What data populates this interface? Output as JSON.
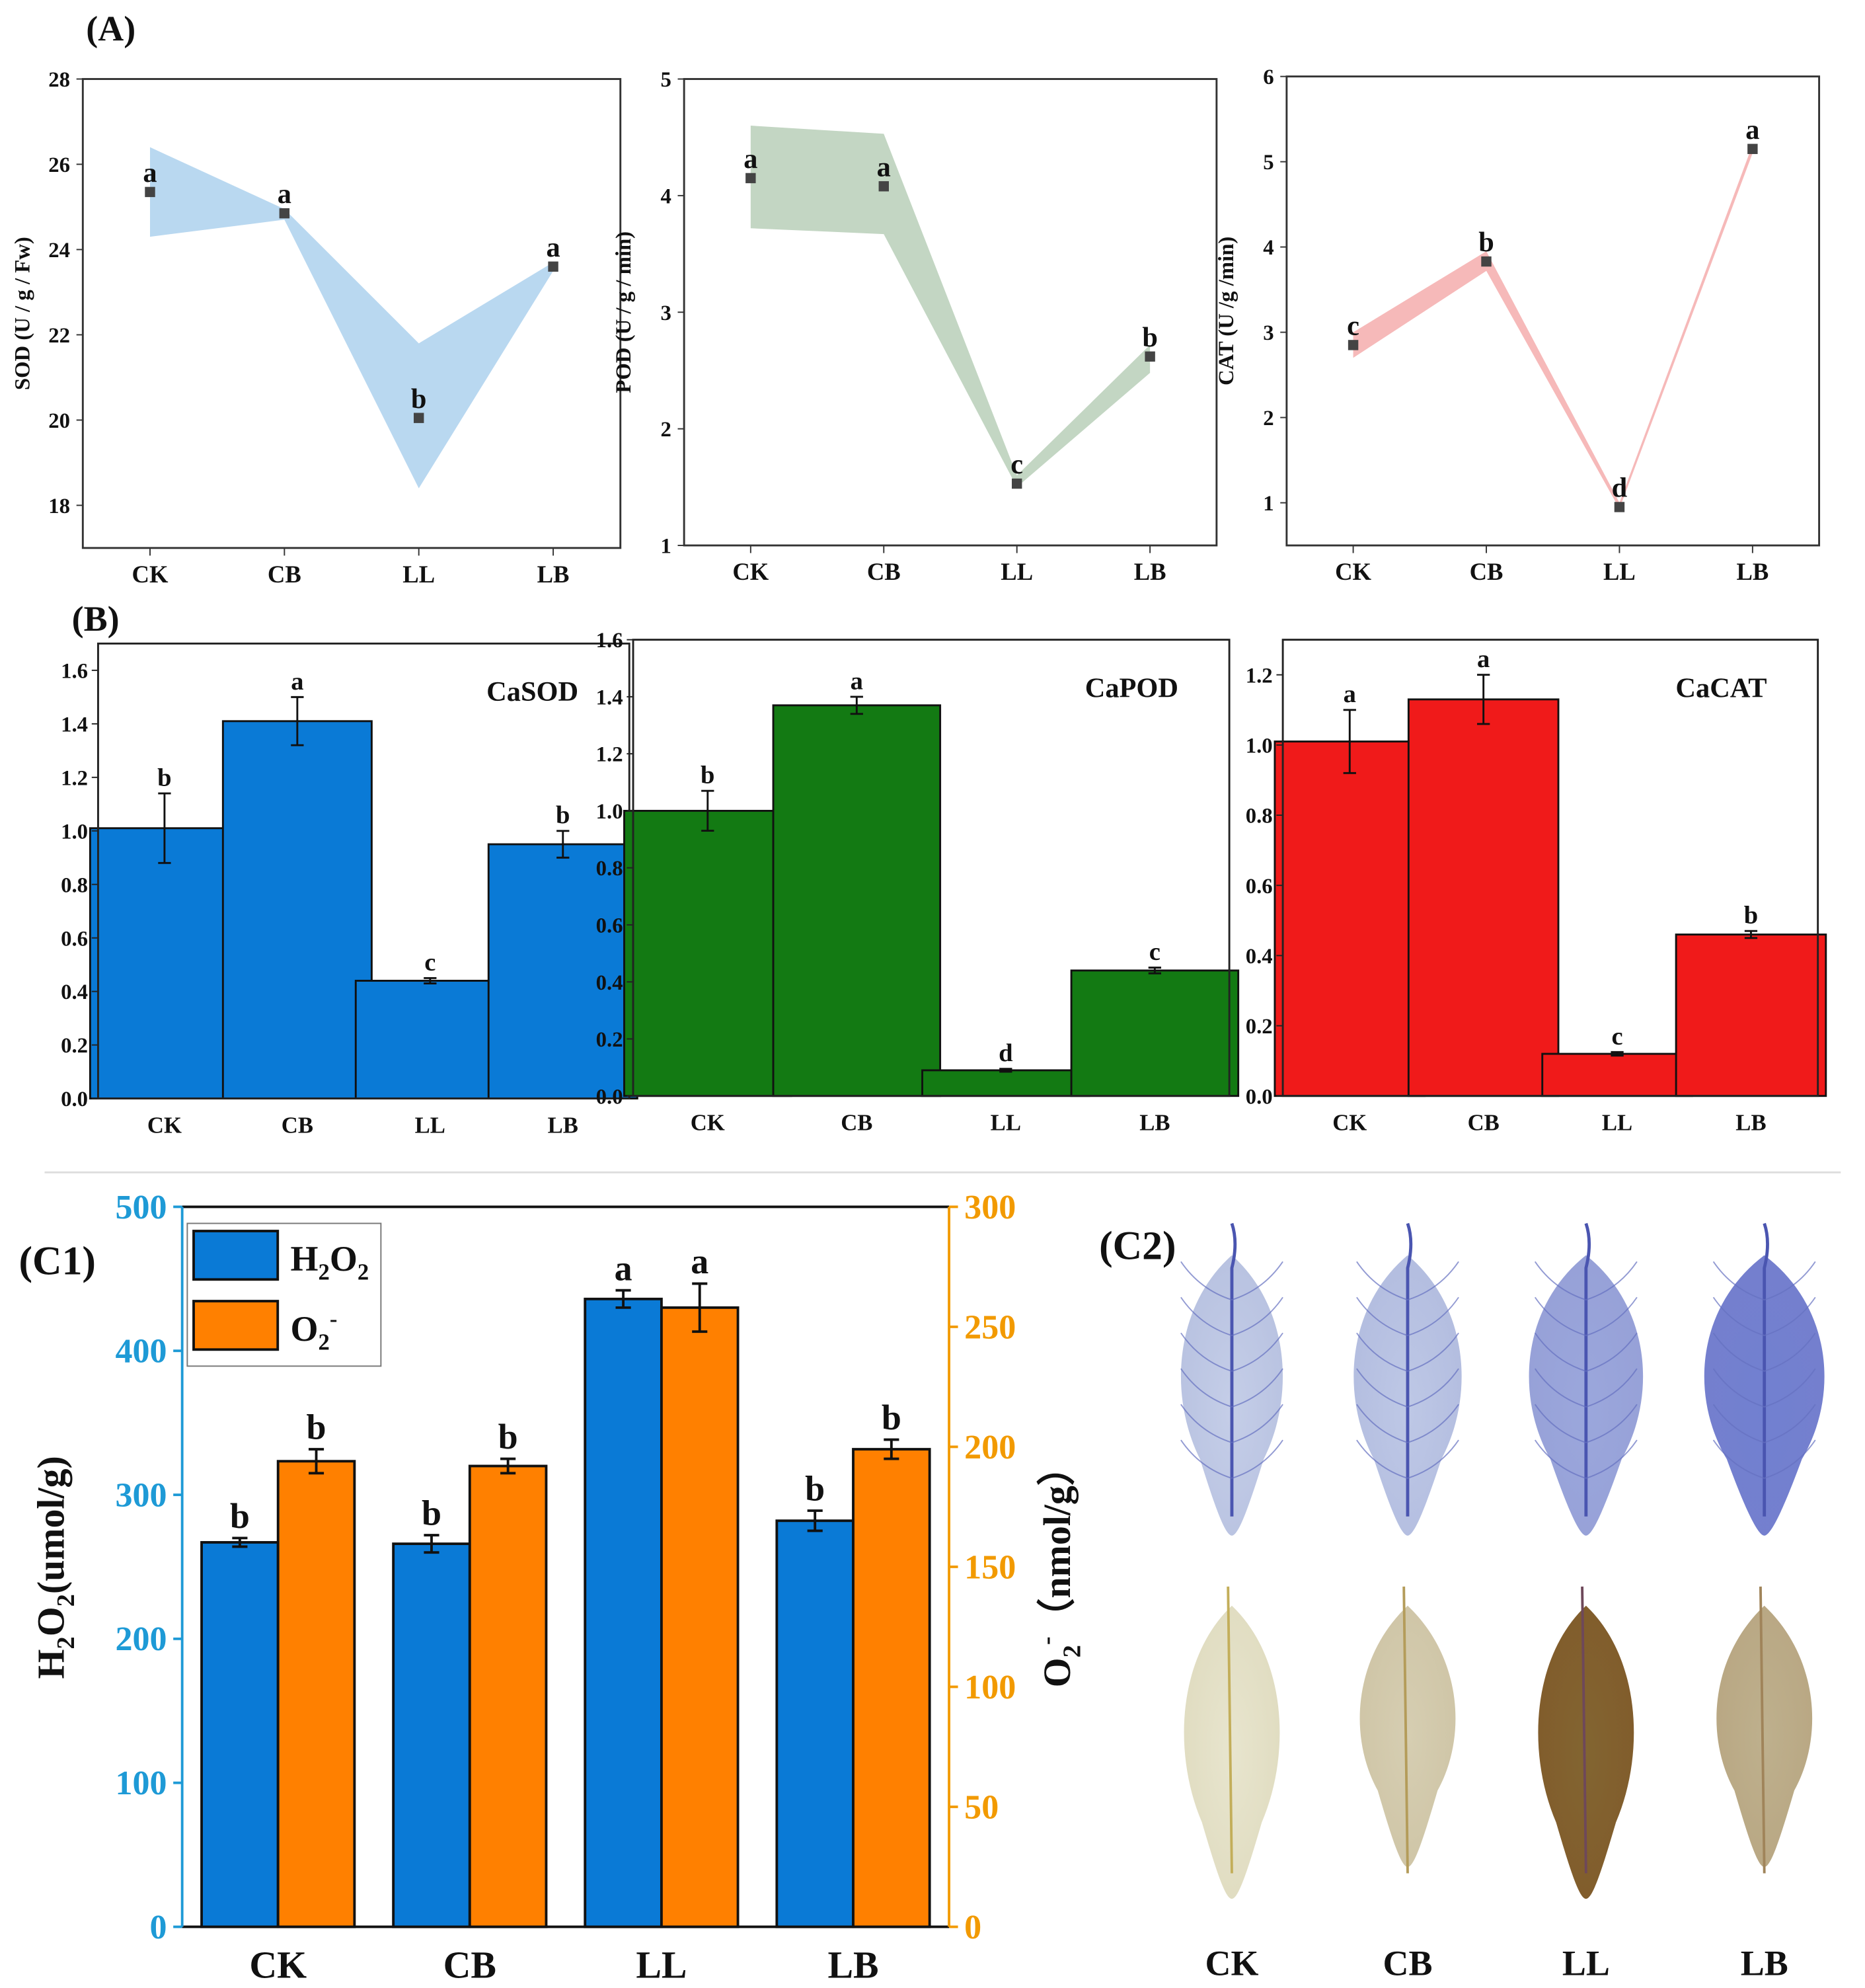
{
  "chart_data": [
    {
      "id": "A1",
      "panel_label": "(A)",
      "type": "line-band",
      "ylabel": "SOD (U / g / Fw)",
      "categories": [
        "CK",
        "CB",
        "LL",
        "LB"
      ],
      "values": [
        25.35,
        24.85,
        20.05,
        23.6
      ],
      "band_low": [
        24.3,
        24.7,
        18.4,
        23.5
      ],
      "band_high": [
        26.4,
        24.95,
        21.8,
        23.7
      ],
      "letters": [
        "a",
        "a",
        "b",
        "a"
      ],
      "ylim": [
        17,
        28
      ],
      "yticks": [
        18,
        20,
        22,
        24,
        26,
        28
      ],
      "color": "#b9d8f0"
    },
    {
      "id": "A2",
      "type": "line-band",
      "ylabel": "POD (U / g / min)",
      "categories": [
        "CK",
        "CB",
        "LL",
        "LB"
      ],
      "values": [
        4.15,
        4.08,
        1.53,
        2.62
      ],
      "band_low": [
        3.72,
        3.67,
        1.5,
        2.48
      ],
      "band_high": [
        4.6,
        4.53,
        1.6,
        2.72
      ],
      "letters": [
        "a",
        "a",
        "c",
        "b"
      ],
      "ylim": [
        1,
        5
      ],
      "yticks": [
        1,
        2,
        3,
        4,
        5
      ],
      "color": "#c3d6c3"
    },
    {
      "id": "A3",
      "type": "line-band",
      "ylabel": "CAT (U /g /min)",
      "categories": [
        "CK",
        "CB",
        "LL",
        "LB"
      ],
      "values": [
        2.85,
        3.83,
        0.95,
        5.15
      ],
      "band_low": [
        2.7,
        3.72,
        0.93,
        5.1
      ],
      "band_high": [
        3.0,
        3.95,
        1.0,
        5.2
      ],
      "letters": [
        "c",
        "b",
        "d",
        "a"
      ],
      "ylim": [
        0.5,
        6
      ],
      "yticks": [
        1,
        2,
        3,
        4,
        5,
        6
      ],
      "color": "#f6b9b9"
    },
    {
      "id": "B1",
      "panel_label": "(B)",
      "type": "bar",
      "title": "CaSOD",
      "categories": [
        "CK",
        "CB",
        "LL",
        "LB"
      ],
      "values": [
        1.01,
        1.41,
        0.44,
        0.95
      ],
      "errors": [
        0.13,
        0.09,
        0.01,
        0.05
      ],
      "letters": [
        "b",
        "a",
        "c",
        "b"
      ],
      "ylim": [
        0,
        1.7
      ],
      "yticks": [
        "0.0",
        "0.2",
        "0.4",
        "0.6",
        "0.8",
        "1.0",
        "1.2",
        "1.4",
        "1.6"
      ],
      "color": "#0a7ad6"
    },
    {
      "id": "B2",
      "type": "bar",
      "title": "CaPOD",
      "categories": [
        "CK",
        "CB",
        "LL",
        "LB"
      ],
      "values": [
        1.0,
        1.37,
        0.09,
        0.44
      ],
      "errors": [
        0.07,
        0.03,
        0.005,
        0.01
      ],
      "letters": [
        "b",
        "a",
        "d",
        "c"
      ],
      "ylim": [
        0,
        1.6
      ],
      "yticks": [
        "0.0",
        "0.2",
        "0.4",
        "0.6",
        "0.8",
        "1.0",
        "1.2",
        "1.4",
        "1.6"
      ],
      "color": "#137a13"
    },
    {
      "id": "B3",
      "type": "bar",
      "title": "CaCAT",
      "categories": [
        "CK",
        "CB",
        "LL",
        "LB"
      ],
      "values": [
        1.01,
        1.13,
        0.12,
        0.46
      ],
      "errors": [
        0.09,
        0.07,
        0.005,
        0.01
      ],
      "letters": [
        "a",
        "a",
        "c",
        "b"
      ],
      "ylim": [
        0,
        1.3
      ],
      "yticks": [
        "0.0",
        "0.2",
        "0.4",
        "0.6",
        "0.8",
        "1.0",
        "1.2"
      ],
      "color": "#f01a1a"
    },
    {
      "id": "C1",
      "panel_label": "(C1)",
      "type": "bar-dual-axis",
      "categories": [
        "CK",
        "CB",
        "LL",
        "LB"
      ],
      "series": [
        {
          "name": "H2O2",
          "axis": "left",
          "values": [
            267,
            266,
            436,
            282
          ],
          "errors": [
            3,
            6,
            6,
            7
          ],
          "letters": [
            "b",
            "b",
            "a",
            "b"
          ],
          "color": "#0a7ad6"
        },
        {
          "name": "O2-",
          "axis": "right",
          "values": [
            194,
            192,
            258,
            199
          ],
          "errors": [
            5,
            3,
            10,
            4
          ],
          "letters": [
            "b",
            "b",
            "a",
            "b"
          ],
          "color": "#ff8000"
        }
      ],
      "ylabel_left": "H2O2(umol/g)",
      "ylabel_right": "O2- (nmol/g)",
      "ylim_left": [
        0,
        500
      ],
      "ylim_right": [
        0,
        300
      ],
      "yticks_left": [
        0,
        100,
        200,
        300,
        400,
        500
      ],
      "yticks_right": [
        0,
        50,
        100,
        150,
        200,
        250,
        300
      ],
      "left_axis_color": "#1e9ad6",
      "right_axis_color": "#f29a00",
      "legend_position": "top-left"
    }
  ],
  "c2": {
    "panel_label": "(C2)",
    "labels": [
      "CK",
      "CB",
      "LL",
      "LB"
    ],
    "nbt_stain_intensity": [
      0.2,
      0.25,
      0.5,
      0.8
    ],
    "dab_stain_intensity": [
      0.05,
      0.2,
      0.9,
      0.4
    ]
  }
}
